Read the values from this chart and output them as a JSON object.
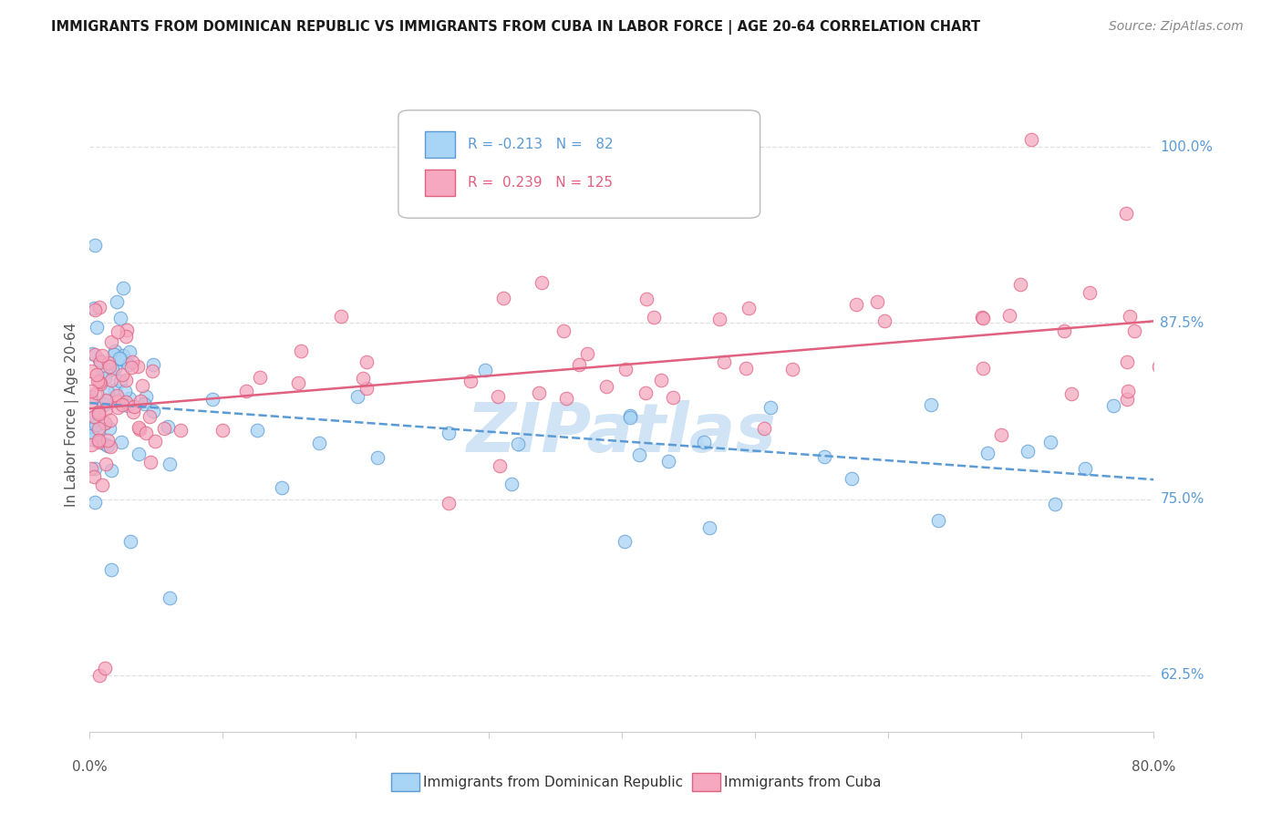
{
  "title": "IMMIGRANTS FROM DOMINICAN REPUBLIC VS IMMIGRANTS FROM CUBA IN LABOR FORCE | AGE 20-64 CORRELATION CHART",
  "source": "Source: ZipAtlas.com",
  "ylabel": "In Labor Force | Age 20-64",
  "ytick_labels": [
    "62.5%",
    "75.0%",
    "87.5%",
    "100.0%"
  ],
  "ytick_values": [
    0.625,
    0.75,
    0.875,
    1.0
  ],
  "xlim": [
    0.0,
    0.8
  ],
  "ylim": [
    0.585,
    1.035
  ],
  "color_dr": "#A8D4F5",
  "color_cuba": "#F5A8C0",
  "edge_dr": "#5B9BD5",
  "edge_cuba": "#E06080",
  "trendline_dr_color": "#5B9BD5",
  "trendline_cuba_color": "#E06080",
  "watermark": "ZIPatlas",
  "watermark_color": "#D0E4F5",
  "background_color": "#ffffff",
  "grid_color": "#E0E0E0",
  "spine_color": "#CCCCCC",
  "ytick_color": "#5B9BD5",
  "title_color": "#1a1a1a",
  "source_color": "#888888",
  "label_color": "#555555",
  "legend_box_edge": "#BBBBBB"
}
